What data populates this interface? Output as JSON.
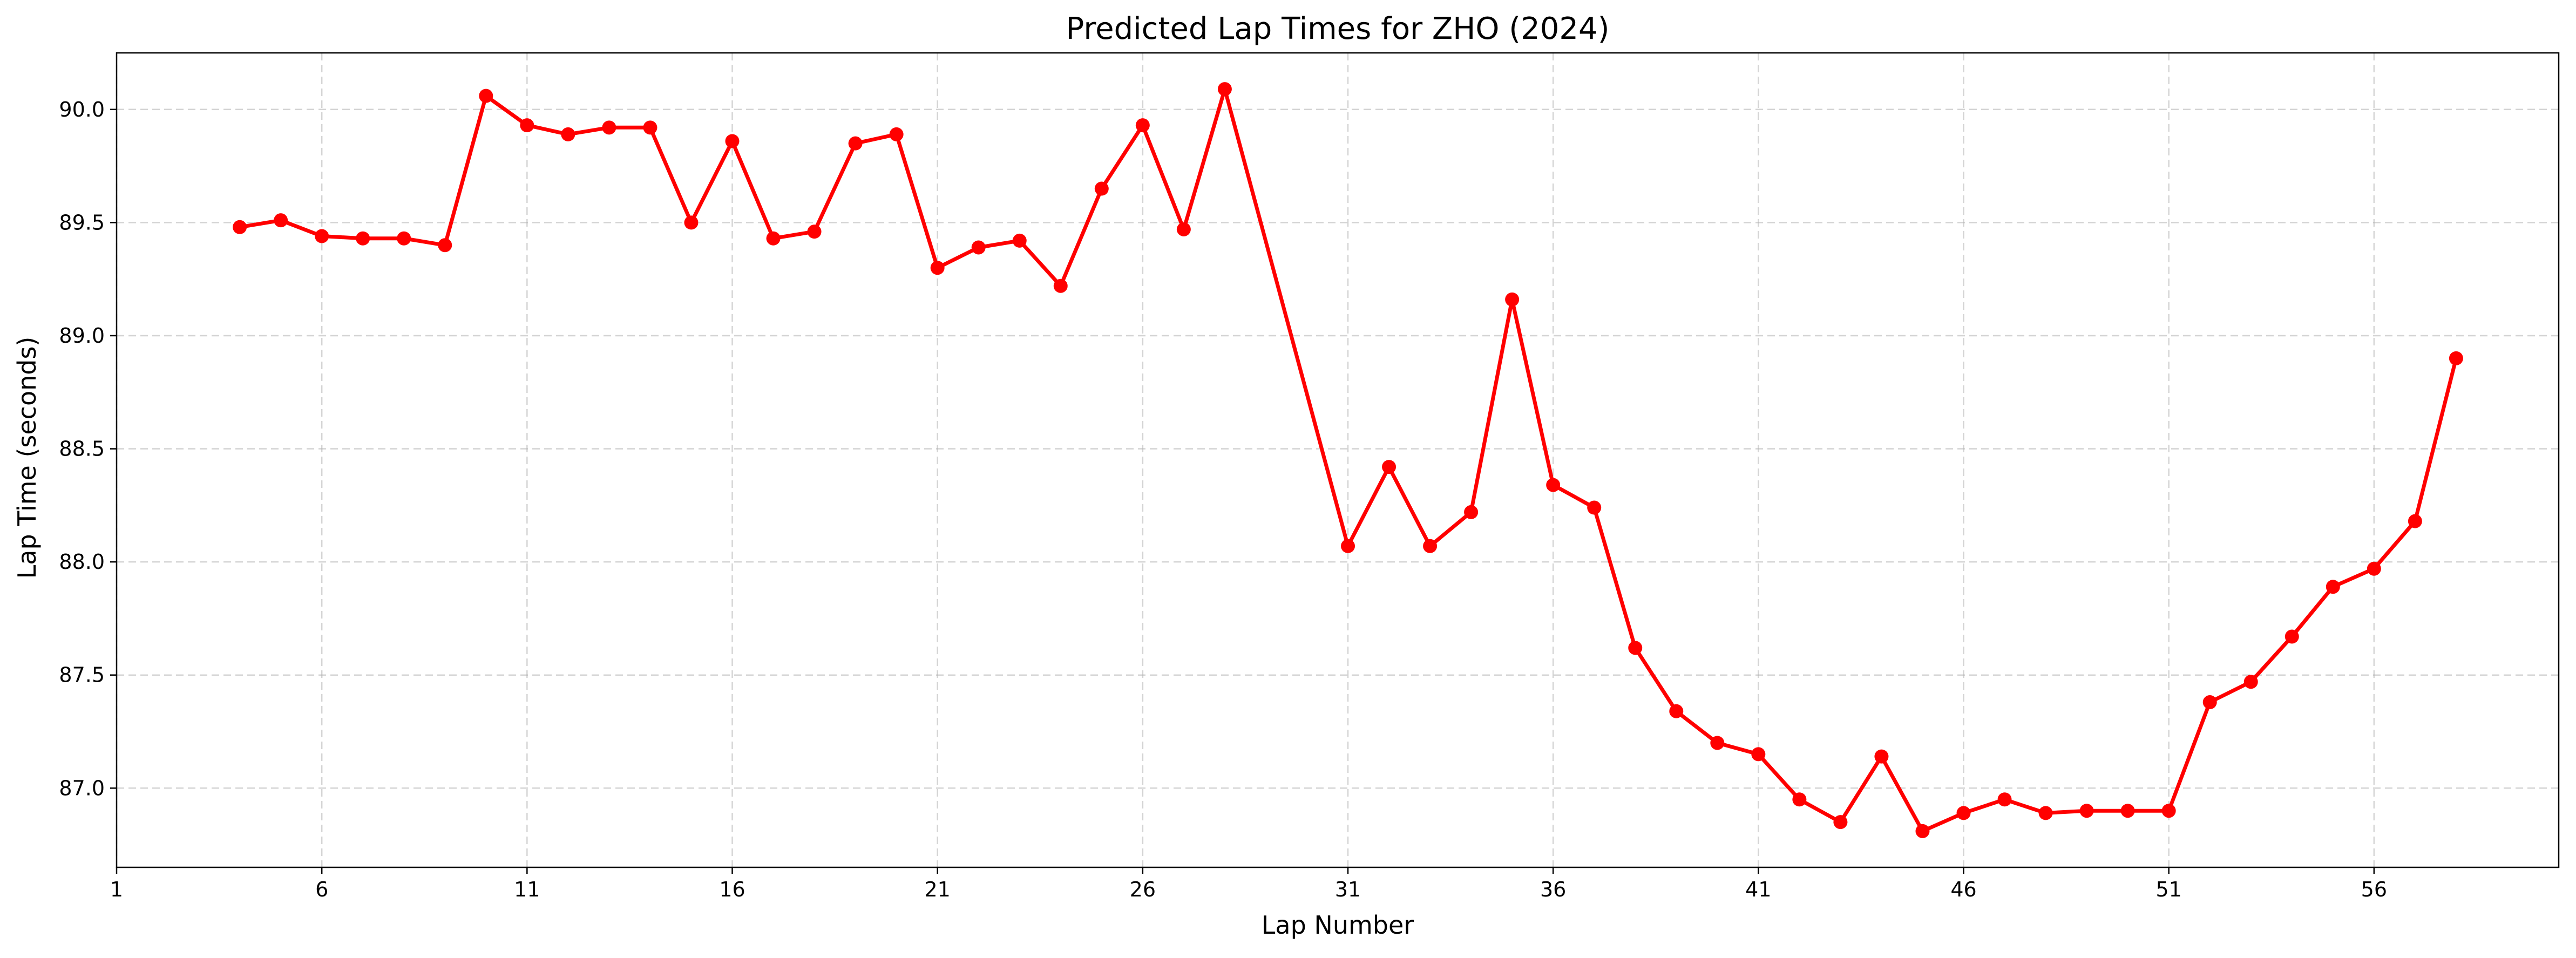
{
  "chart_data": {
    "type": "line",
    "title": "Predicted Lap Times for ZHO (2024)",
    "xlabel": "Lap Number",
    "ylabel": "Lap Time (seconds)",
    "xlim": [
      1,
      60.5
    ],
    "ylim": [
      86.65,
      90.25
    ],
    "xticks": [
      1,
      6,
      11,
      16,
      21,
      26,
      31,
      36,
      41,
      46,
      51,
      56
    ],
    "yticks": [
      87.0,
      87.5,
      88.0,
      88.5,
      89.0,
      89.5,
      90.0
    ],
    "ytick_labels": [
      "87.0",
      "87.5",
      "88.0",
      "88.5",
      "89.0",
      "89.5",
      "90.0"
    ],
    "grid": true,
    "series": [
      {
        "color": "#ff0000",
        "marker": "circle",
        "x": [
          4,
          5,
          6,
          7,
          8,
          9,
          10,
          11,
          12,
          13,
          14,
          15,
          16,
          17,
          18,
          19,
          20,
          21,
          22,
          23,
          24,
          25,
          26,
          27,
          28,
          31,
          32,
          33,
          34,
          35,
          36,
          37,
          38,
          39,
          40,
          41,
          42,
          43,
          44,
          45,
          46,
          47,
          48,
          49,
          50,
          51,
          52,
          53,
          54,
          55,
          56,
          57,
          58
        ],
        "y": [
          89.48,
          89.51,
          89.44,
          89.43,
          89.43,
          89.4,
          90.06,
          89.93,
          89.89,
          89.92,
          89.92,
          89.5,
          89.86,
          89.43,
          89.46,
          89.85,
          89.89,
          89.3,
          89.39,
          89.42,
          89.22,
          89.65,
          89.93,
          89.47,
          90.09,
          88.07,
          88.42,
          88.07,
          88.22,
          89.16,
          88.34,
          88.24,
          87.62,
          87.34,
          87.2,
          87.15,
          86.95,
          86.85,
          87.14,
          86.81,
          86.89,
          86.95,
          86.89,
          86.9,
          86.9,
          86.9,
          87.38,
          87.47,
          87.67,
          87.89,
          87.97,
          88.18,
          88.9
        ]
      }
    ]
  }
}
